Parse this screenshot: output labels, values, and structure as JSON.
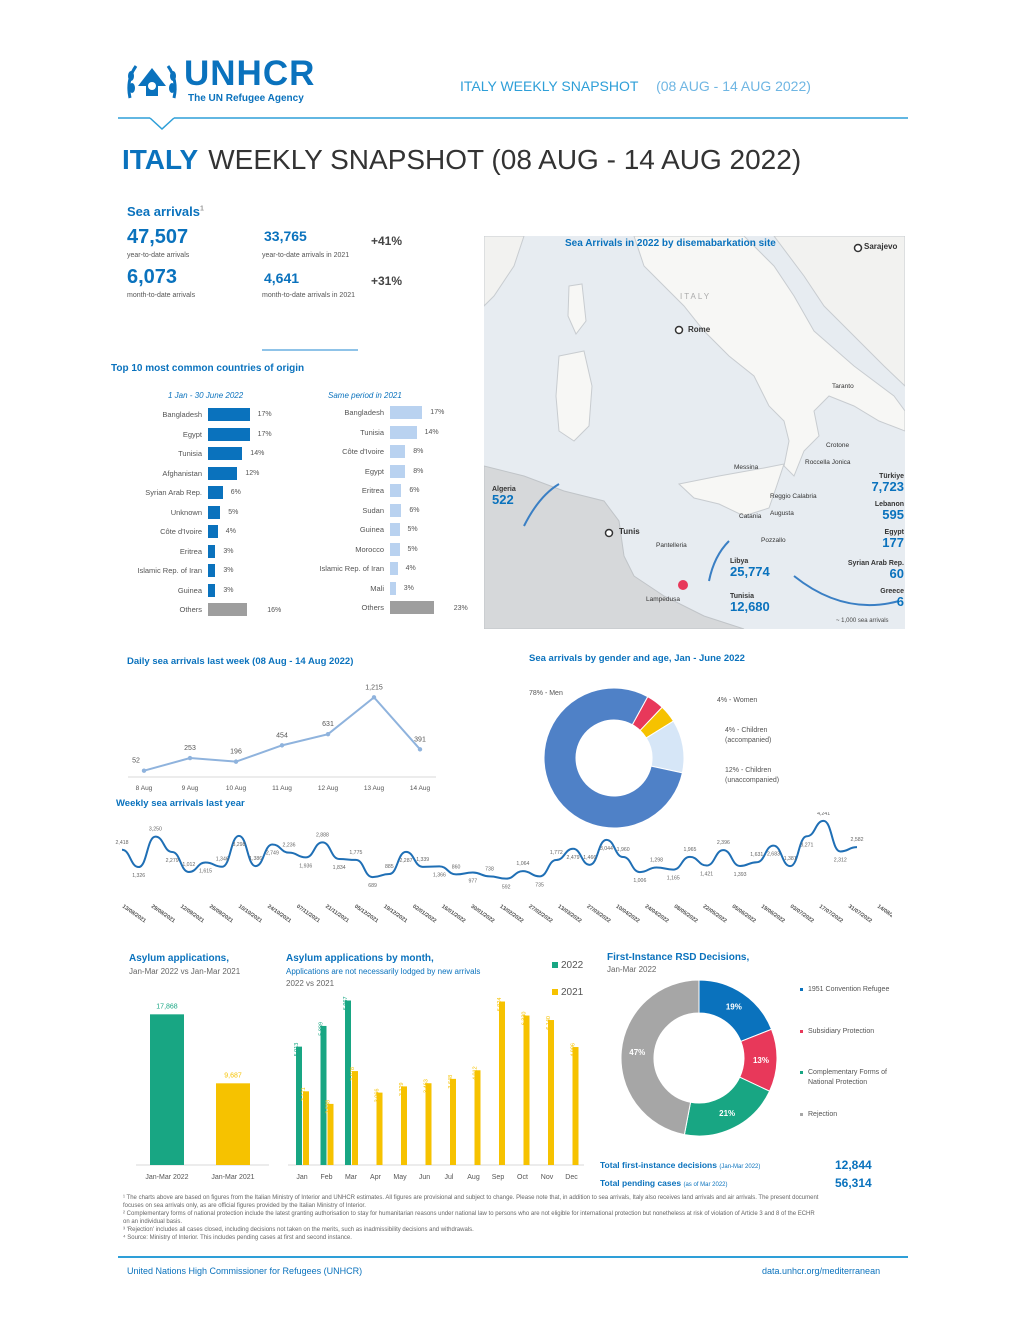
{
  "header": {
    "org_name": "UNHCR",
    "org_tagline": "The UN Refugee Agency",
    "top_title": "ITALY WEEKLY SNAPSHOT",
    "top_period": "(08 AUG - 14 AUG 2022)",
    "country": "ITALY",
    "main_title": "WEEKLY SNAPSHOT (08 AUG - 14 AUG 2022)"
  },
  "sea_arrivals": {
    "title": "Sea arrivals",
    "footnote_mark": "1",
    "ytd_value": "47,507",
    "ytd_label": "year-to-date arrivals",
    "mtd_value": "6,073",
    "mtd_label": "month-to-date arrivals",
    "ytd_2021_value": "33,765",
    "ytd_2021_label": "year-to-date arrivals in 2021",
    "ytd_change": "+41%",
    "mtd_2021_value": "4,641",
    "mtd_2021_label": "month-to-date arrivals in 2021",
    "mtd_change": "+31%"
  },
  "top10": {
    "title": "Top 10 most common countries of origin",
    "col1_title": "1 Jan - 30 June 2022",
    "col2_title": "Same period in 2021",
    "col1": [
      {
        "name": "Bangladesh",
        "pct": "17%",
        "value": 17
      },
      {
        "name": "Egypt",
        "pct": "17%",
        "value": 17
      },
      {
        "name": "Tunisia",
        "pct": "14%",
        "value": 14
      },
      {
        "name": "Afghanistan",
        "pct": "12%",
        "value": 12
      },
      {
        "name": "Syrian Arab Rep.",
        "pct": "6%",
        "value": 6
      },
      {
        "name": "Unknown",
        "pct": "5%",
        "value": 5
      },
      {
        "name": "Côte d'Ivoire",
        "pct": "4%",
        "value": 4
      },
      {
        "name": "Eritrea",
        "pct": "3%",
        "value": 3
      },
      {
        "name": "Islamic Rep. of Iran",
        "pct": "3%",
        "value": 3
      },
      {
        "name": "Guinea",
        "pct": "3%",
        "value": 3
      },
      {
        "name": "Others",
        "pct": "16%",
        "value": 16
      }
    ],
    "col2": [
      {
        "name": "Bangladesh",
        "pct": "17%",
        "value": 17
      },
      {
        "name": "Tunisia",
        "pct": "14%",
        "value": 14
      },
      {
        "name": "Côte d'Ivoire",
        "pct": "8%",
        "value": 8
      },
      {
        "name": "Egypt",
        "pct": "8%",
        "value": 8
      },
      {
        "name": "Eritrea",
        "pct": "6%",
        "value": 6
      },
      {
        "name": "Sudan",
        "pct": "6%",
        "value": 6
      },
      {
        "name": "Guinea",
        "pct": "5%",
        "value": 5
      },
      {
        "name": "Morocco",
        "pct": "5%",
        "value": 5
      },
      {
        "name": "Islamic Rep. of Iran",
        "pct": "4%",
        "value": 4
      },
      {
        "name": "Mali",
        "pct": "3%",
        "value": 3
      },
      {
        "name": "Others",
        "pct": "23%",
        "value": 23
      }
    ]
  },
  "map": {
    "title": "Sea Arrivals in 2022 by disemabarkation site",
    "cities": [
      "Sarajevo",
      "Rome",
      "Taranto",
      "Crotone",
      "Roccella Jonica",
      "Messina",
      "Reggio Calabria",
      "Catania",
      "Augusta",
      "Pozzallo",
      "Pantelleria",
      "Lampedusa",
      "Tunis"
    ],
    "italy_label": "ITALY",
    "routes": [
      {
        "from": "Algeria",
        "value": "522"
      },
      {
        "from": "Libya",
        "value": "25,774"
      },
      {
        "from": "Tunisia",
        "value": "12,680"
      },
      {
        "from": "Türkiye",
        "value": "7,723"
      },
      {
        "from": "Lebanon",
        "value": "595"
      },
      {
        "from": "Egypt",
        "value": "177"
      },
      {
        "from": "Syrian Arab Rep.",
        "value": "60"
      },
      {
        "from": "Greece",
        "value": "6"
      }
    ],
    "scale_note": "~ 1,000 sea arrivals"
  },
  "daily": {
    "title": "Daily sea arrivals last week (08 Aug - 14 Aug 2022)",
    "chart_data": {
      "type": "line",
      "categories": [
        "8 Aug",
        "9 Aug",
        "10 Aug",
        "11 Aug",
        "12 Aug",
        "13 Aug",
        "14 Aug"
      ],
      "values": [
        52,
        253,
        196,
        454,
        631,
        1215,
        391
      ],
      "labels": [
        "52",
        "253",
        "196",
        "454",
        "631",
        "1,215",
        "391"
      ]
    }
  },
  "gender": {
    "title": "Sea arrivals by gender and age, Jan - June 2022",
    "chart_data": {
      "type": "pie",
      "slices": [
        {
          "name": "78% - Men",
          "value": 78,
          "color": "#4f81c7"
        },
        {
          "name": "4% - Women",
          "value": 4,
          "color": "#e8385a"
        },
        {
          "name": "4% - Children (accompanied)",
          "value": 4,
          "color": "#f6c200"
        },
        {
          "name": "12% - Children (unaccompanied)",
          "value": 12,
          "color": "#d6e6f7"
        }
      ]
    },
    "labels": {
      "men": "78% - Men",
      "women": "4% - Women",
      "children_acc": "4% - Children (accompanied)",
      "children_unacc": "12% - Children (unaccompanied)"
    }
  },
  "weekly": {
    "title": "Weekly sea arrivals last year",
    "chart_data": {
      "type": "line",
      "values": [
        2418,
        1326,
        3250,
        2279,
        1012,
        1615,
        1346,
        3298,
        1386,
        2749,
        2236,
        1936,
        2888,
        1834,
        1775,
        689,
        885,
        2287,
        1339,
        1366,
        860,
        977,
        738,
        592,
        1064,
        735,
        1772,
        2479,
        1466,
        3044,
        1960,
        1006,
        1298,
        1165,
        1965,
        1421,
        2396,
        1393,
        1631,
        2683,
        1381,
        3271,
        4241,
        2312,
        2582
      ],
      "x_labels": [
        "13/08/2021",
        "29/08/2021",
        "12/09/2021",
        "26/09/2021",
        "10/10/2021",
        "24/10/2021",
        "07/11/2021",
        "21/11/2021",
        "05/12/2021",
        "19/12/2021",
        "02/01/2022",
        "16/01/2022",
        "30/01/2022",
        "13/02/2022",
        "27/02/2022",
        "13/03/2022",
        "27/03/2022",
        "10/04/2022",
        "24/04/2022",
        "08/05/2022",
        "22/05/2022",
        "05/06/2022",
        "19/06/2022",
        "03/07/2022",
        "17/07/2022",
        "31/07/2022",
        "14/08/2022"
      ],
      "point_labels": [
        "2,418",
        "1,326",
        "3,250",
        "2,279",
        "1,012",
        "1,615",
        "1,346",
        "3,298",
        "1,386",
        "2,749",
        "2,236",
        "1,936",
        "2,888",
        "1,834",
        "1,775",
        "689",
        "885",
        "2,287",
        "1,339",
        "1,366",
        "860",
        "977",
        "738",
        "592",
        "1,064",
        "735",
        "1,772",
        "2,479",
        "1,466",
        "3,044",
        "1,960",
        "1,006",
        "1,298",
        "1,165",
        "1,965",
        "1,421",
        "2,396",
        "1,393",
        "1,631",
        "2,683",
        "1,381",
        "3,271",
        "4,241",
        "2,312",
        "2,582"
      ]
    }
  },
  "asylum": {
    "title": "Asylum applications,",
    "subtitle": "Jan-Mar 2022 vs Jan-Mar 2021",
    "chart_data": {
      "type": "bar",
      "categories": [
        "Jan-Mar 2022",
        "Jan-Mar 2021"
      ],
      "values": [
        17868,
        9687
      ],
      "labels": [
        "17,868",
        "9,687"
      ],
      "colors": [
        "#18a683",
        "#f6c200"
      ]
    }
  },
  "asylum_monthly": {
    "title": "Asylum applications by month,",
    "subtitle": "Applications are not necessarily lodged by new arrivals",
    "subtitle2": "2022 vs 2021",
    "legend_2022": "2022",
    "legend_2021": "2021",
    "chart_data": {
      "type": "bar",
      "categories": [
        "Jan",
        "Feb",
        "Mar",
        "Apr",
        "May",
        "Jun",
        "Jul",
        "Aug",
        "Sep",
        "Oct",
        "Nov",
        "Dec"
      ],
      "series": [
        {
          "name": "2022",
          "values": [
            5013,
            5889,
            6967,
            null,
            null,
            null,
            null,
            null,
            null,
            null,
            null,
            null
          ],
          "labels": [
            "5,013",
            "5,889",
            "6,967"
          ]
        },
        {
          "name": "2021",
          "values": [
            3121,
            2588,
            3978,
            3066,
            3329,
            3463,
            3648,
            4012,
            6924,
            6330,
            6140,
            4996
          ],
          "labels": [
            "3,121",
            "2,588",
            "3,978",
            "3,066",
            "3,329",
            "3,463",
            "3,648",
            "4,012",
            "6,924",
            "6,330",
            "6,140",
            "4,996"
          ]
        }
      ]
    }
  },
  "rsd": {
    "title": "First-Instance RSD Decisions,",
    "subtitle": "Jan-Mar 2022",
    "chart_data": {
      "type": "pie",
      "slices": [
        {
          "name": "1951 Convention Refugee",
          "value": 19,
          "label": "19%",
          "color": "#0a72bd"
        },
        {
          "name": "Subsidiary Protection",
          "value": 13,
          "label": "13%",
          "color": "#e8385a"
        },
        {
          "name": "Complementary Forms of National Protection",
          "value": 21,
          "label": "21%",
          "color": "#18a683"
        },
        {
          "name": "Rejection",
          "value": 47,
          "label": "47%",
          "color": "#a6a6a6"
        }
      ]
    },
    "legend": {
      "convention": "1951 Convention Refugee",
      "subsidiary": "Subsidiary Protection",
      "complementary": "Complementary Forms of National Protection",
      "rejection": "Rejection"
    },
    "total_decisions_label": "Total first-instance decisions",
    "total_decisions_period": "(Jan-Mar 2022)",
    "total_decisions_value": "12,844",
    "total_pending_label": "Total pending cases",
    "total_pending_period": "(as of Mar 2022)",
    "total_pending_value": "56,314"
  },
  "footnotes": [
    "¹ The charts above are based on figures from the Italian Ministry of Interior and UNHCR estimates. All figures are provisional and subject to change. Please note that, in addition to sea arrivals, Italy also receives land arrivals and air arrivals. The present document focuses on sea arrivals only, as are official figures provided by the Italian Ministry of Interior.",
    "² Complementary forms of national protection include the latest granting authorisation to stay for humanitarian reasons under national law to persons who are not eligible for international protection but nonetheless at risk of violation of Article 3 and 8 of the ECHR on an individual basis.",
    "³ 'Rejection' includes all cases closed, including decisions not taken on the merits, such as inadmissibility decisions and withdrawals.",
    "⁴ Source: Ministry of Interior. This includes pending cases at first and second instance."
  ],
  "footer": {
    "left": "United Nations High Commissioner for Refugees (UNHCR)",
    "right": "data.unhcr.org/mediterranean"
  }
}
